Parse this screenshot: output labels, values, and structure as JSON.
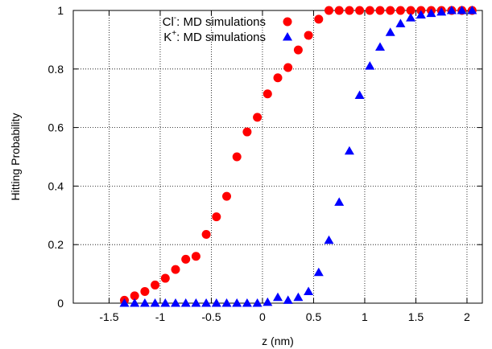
{
  "chart_data": {
    "type": "scatter",
    "title": "",
    "xlabel": "z (nm)",
    "ylabel": "Hitting Probability",
    "xlim": [
      -1.85,
      2.15
    ],
    "ylim": [
      0,
      1
    ],
    "x_ticks": [
      "-1.5",
      "-1",
      "-0.5",
      "0",
      "0.5",
      "1",
      "1.5",
      "2"
    ],
    "y_ticks": [
      "0",
      "0.2",
      "0.4",
      "0.6",
      "0.8",
      "1"
    ],
    "grid": true,
    "legend_position": "top-left",
    "series": [
      {
        "name": "Cl⁻: MD simulations",
        "legend_main": "Cl",
        "legend_sup": "-",
        "legend_rest": ": MD simulations",
        "marker": "circle",
        "color": "#ff0000",
        "points": [
          [
            -1.35,
            0.01
          ],
          [
            -1.25,
            0.025
          ],
          [
            -1.15,
            0.04
          ],
          [
            -1.05,
            0.062
          ],
          [
            -0.95,
            0.085
          ],
          [
            -0.85,
            0.115
          ],
          [
            -0.75,
            0.15
          ],
          [
            -0.65,
            0.16
          ],
          [
            -0.55,
            0.235
          ],
          [
            -0.45,
            0.295
          ],
          [
            -0.35,
            0.365
          ],
          [
            -0.25,
            0.5
          ],
          [
            -0.15,
            0.585
          ],
          [
            -0.05,
            0.635
          ],
          [
            0.05,
            0.715
          ],
          [
            0.15,
            0.77
          ],
          [
            0.25,
            0.805
          ],
          [
            0.35,
            0.865
          ],
          [
            0.45,
            0.915
          ],
          [
            0.55,
            0.97
          ],
          [
            0.65,
            1.0
          ],
          [
            0.75,
            1.0
          ],
          [
            0.85,
            1.0
          ],
          [
            0.95,
            1.0
          ],
          [
            1.05,
            1.0
          ],
          [
            1.15,
            1.0
          ],
          [
            1.25,
            1.0
          ],
          [
            1.35,
            1.0
          ],
          [
            1.45,
            1.0
          ],
          [
            1.55,
            1.0
          ],
          [
            1.65,
            1.0
          ],
          [
            1.75,
            1.0
          ],
          [
            1.85,
            1.0
          ],
          [
            1.95,
            1.0
          ],
          [
            2.05,
            1.0
          ]
        ]
      },
      {
        "name": "K⁺: MD simulations",
        "legend_main": "K",
        "legend_sup": "+",
        "legend_rest": ": MD simulations",
        "marker": "triangle",
        "color": "#0000ff",
        "points": [
          [
            -1.35,
            0.0
          ],
          [
            -1.25,
            0.0
          ],
          [
            -1.15,
            0.0
          ],
          [
            -1.05,
            0.0
          ],
          [
            -0.95,
            0.0
          ],
          [
            -0.85,
            0.0
          ],
          [
            -0.75,
            0.0
          ],
          [
            -0.65,
            0.0
          ],
          [
            -0.55,
            0.0
          ],
          [
            -0.45,
            0.0
          ],
          [
            -0.35,
            0.0
          ],
          [
            -0.25,
            0.0
          ],
          [
            -0.15,
            0.0
          ],
          [
            -0.05,
            0.0
          ],
          [
            0.05,
            0.003
          ],
          [
            0.15,
            0.02
          ],
          [
            0.25,
            0.01
          ],
          [
            0.35,
            0.02
          ],
          [
            0.45,
            0.04
          ],
          [
            0.55,
            0.105
          ],
          [
            0.65,
            0.215
          ],
          [
            0.75,
            0.345
          ],
          [
            0.85,
            0.52
          ],
          [
            0.95,
            0.71
          ],
          [
            1.05,
            0.81
          ],
          [
            1.15,
            0.875
          ],
          [
            1.25,
            0.925
          ],
          [
            1.35,
            0.955
          ],
          [
            1.45,
            0.975
          ],
          [
            1.55,
            0.985
          ],
          [
            1.65,
            0.99
          ],
          [
            1.75,
            0.995
          ],
          [
            1.85,
            1.0
          ],
          [
            1.95,
            1.0
          ],
          [
            2.05,
            1.0
          ]
        ]
      }
    ]
  }
}
